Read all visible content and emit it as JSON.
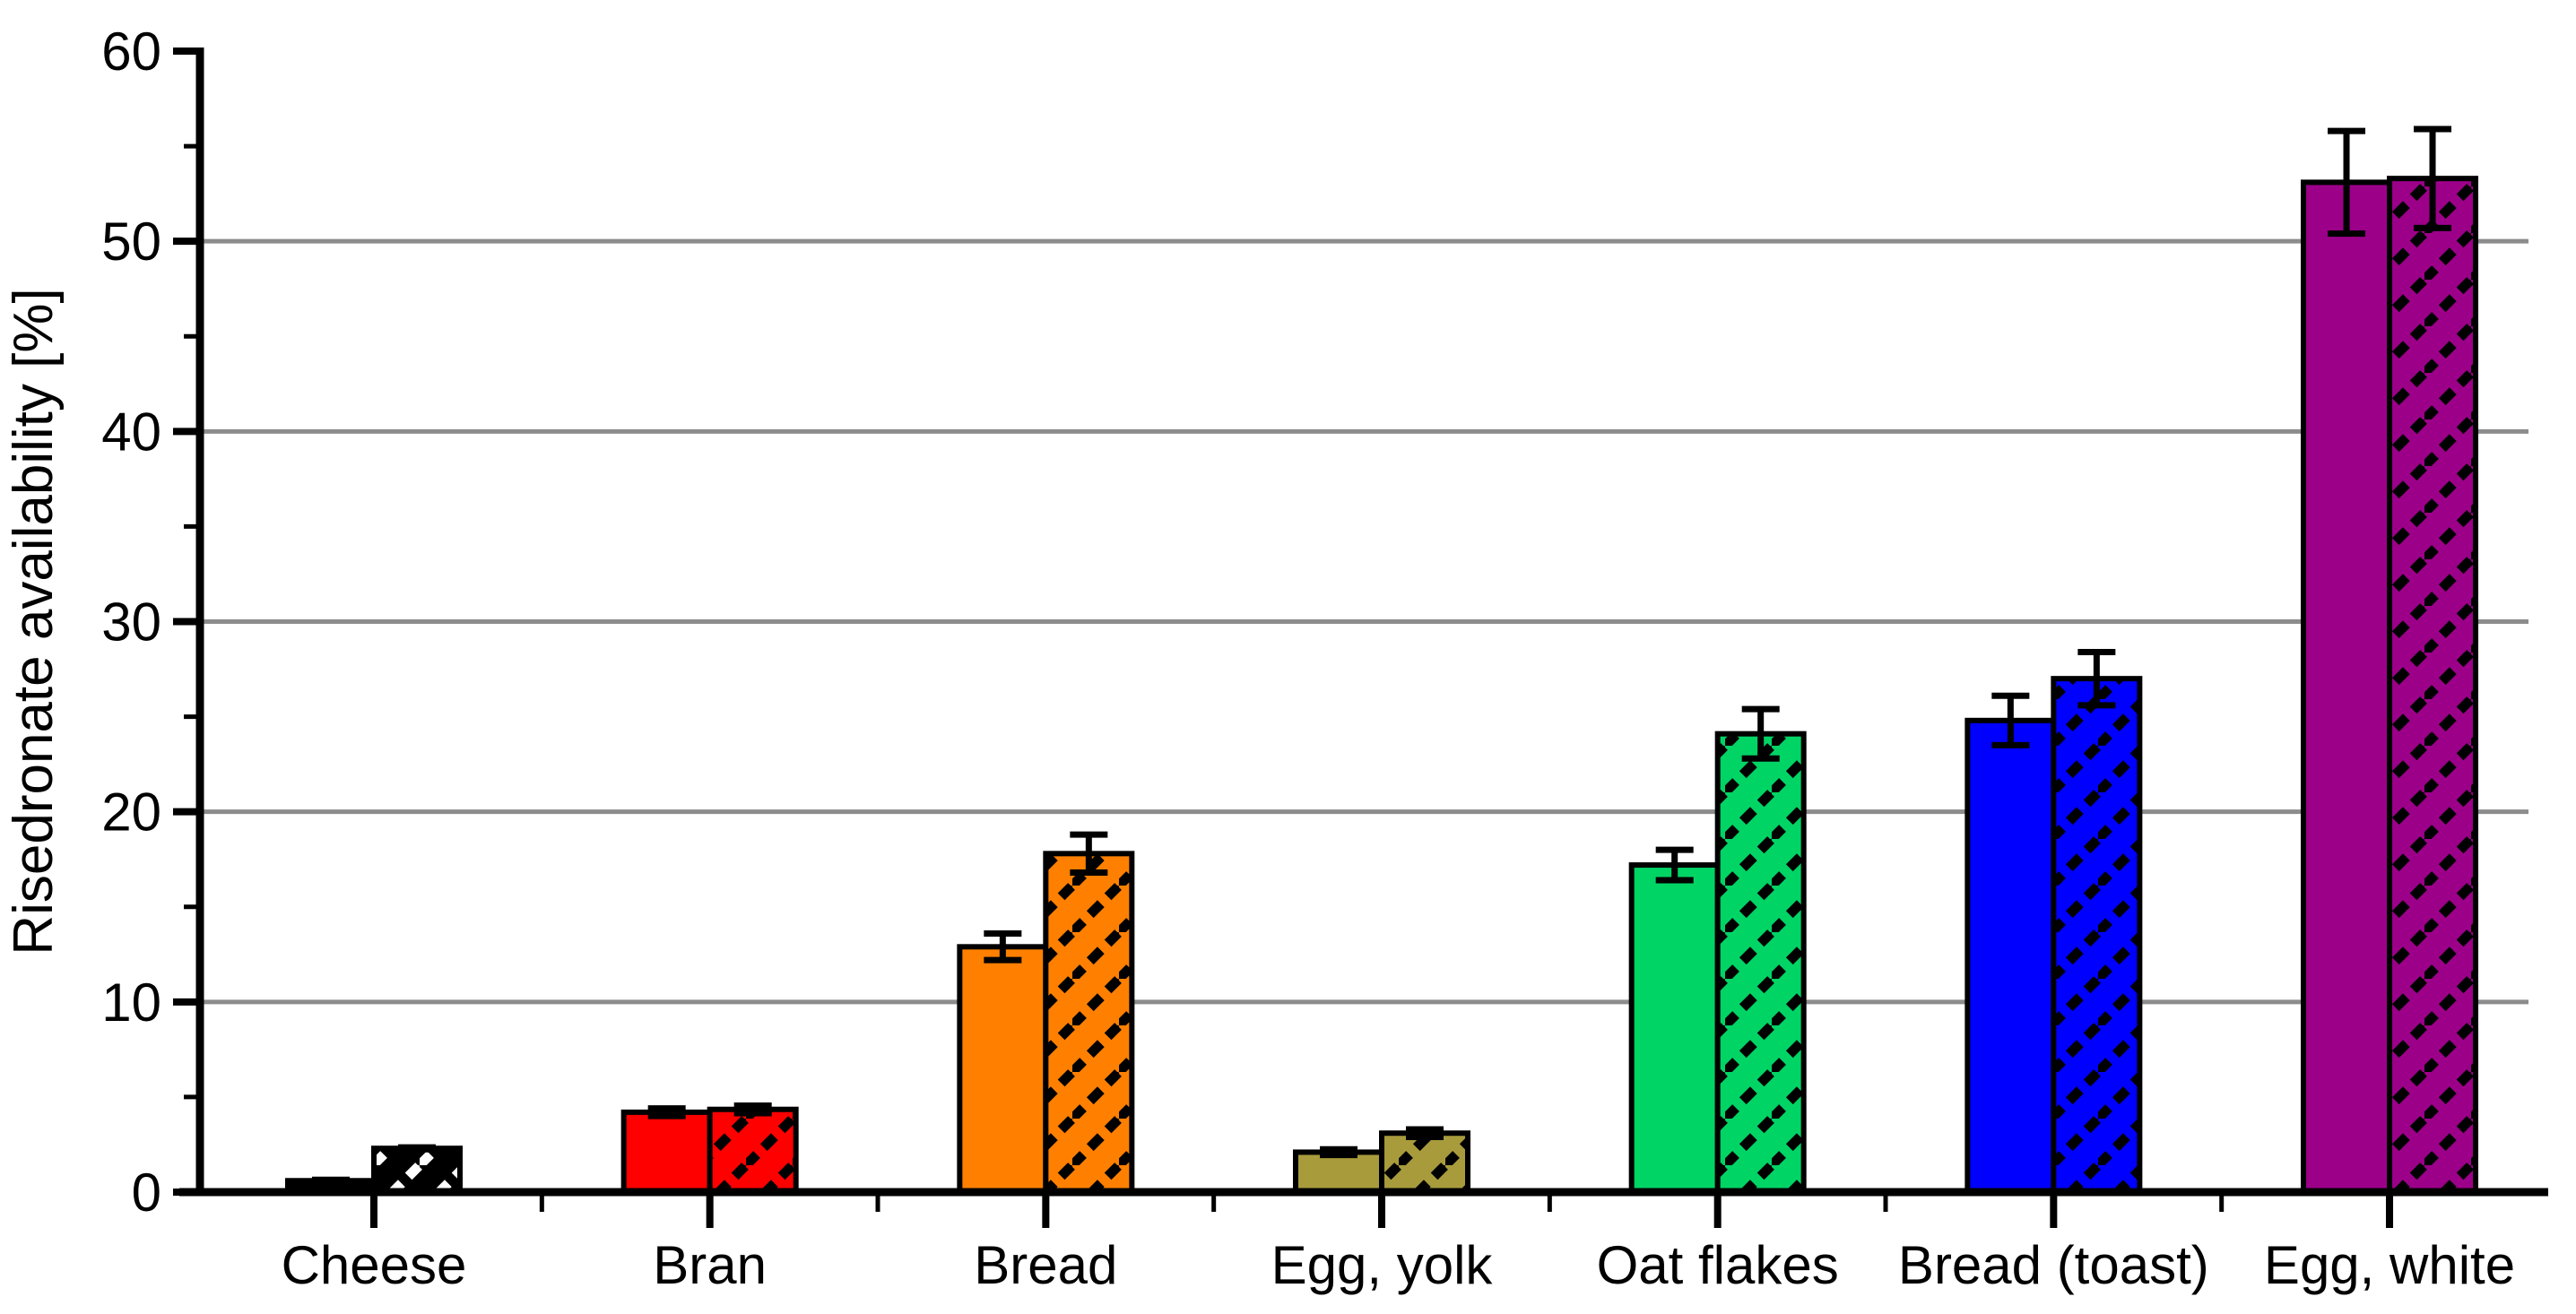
{
  "chart_data": {
    "type": "bar",
    "title": "",
    "xlabel": "",
    "ylabel": "Risedronate availability [%]",
    "ylim": [
      0,
      60
    ],
    "y_major_tick_step": 10,
    "y_minor_tick_step": 5,
    "y_tick_labels": [
      "0",
      "10",
      "20",
      "30",
      "40",
      "50",
      "60"
    ],
    "grid": "horizontal-gray-lines-at-major-ticks-10-to-50",
    "legend": "none",
    "grid_color": "#8C8C8C",
    "axis_color": "#000000",
    "categories": [
      "Cheese",
      "Bran",
      "Bread",
      "Egg, yolk",
      "Oat flakes",
      "Bread (toast)",
      "Egg, white"
    ],
    "category_colors": [
      "#000000",
      "#FF0000",
      "#FF8000",
      "#A89B3C",
      "#00D465",
      "#0000FF",
      "#9C0089"
    ],
    "series": [
      {
        "name": "plain bar",
        "pattern": "solid",
        "values": [
          0.6,
          4.2,
          12.9,
          2.1,
          17.2,
          24.8,
          53.1
        ],
        "errors": [
          0.05,
          0.2,
          0.7,
          0.15,
          0.8,
          1.3,
          2.7
        ]
      },
      {
        "name": "hatched bar",
        "pattern": "diagonal-hatch",
        "values": [
          2.3,
          4.35,
          17.8,
          3.1,
          24.1,
          27.0,
          53.3
        ],
        "errors": [
          0.05,
          0.2,
          1.0,
          0.2,
          1.3,
          1.4,
          2.6
        ]
      }
    ]
  }
}
